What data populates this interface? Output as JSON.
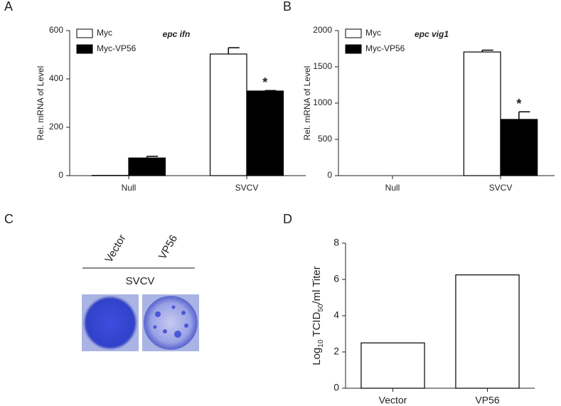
{
  "chart_data": [
    {
      "type": "bar",
      "panel_label": "A",
      "title": "epc ifn",
      "ylabel": "Rel. mRNA of Level",
      "categories": [
        "Null",
        "SVCV"
      ],
      "series": [
        {
          "name": "Myc",
          "color": "#ffffff",
          "values": [
            1,
            503
          ],
          "errors": [
            0,
            26
          ],
          "annotations": [
            null,
            null
          ]
        },
        {
          "name": "Myc-VP56",
          "color": "#000000",
          "values": [
            73,
            350
          ],
          "errors": [
            7,
            2
          ],
          "annotations": [
            null,
            "*"
          ]
        }
      ],
      "ylim": [
        0,
        600
      ],
      "yticks": [
        0,
        200,
        400,
        600
      ],
      "legend": "upper left"
    },
    {
      "type": "bar",
      "panel_label": "B",
      "title": "epc vig1",
      "ylabel": "Rel. mRNA of Level",
      "categories": [
        "Null",
        "SVCV"
      ],
      "series": [
        {
          "name": "Myc",
          "color": "#ffffff",
          "values": [
            0,
            1705
          ],
          "errors": [
            0,
            25
          ],
          "annotations": [
            null,
            null
          ]
        },
        {
          "name": "Myc-VP56",
          "color": "#000000",
          "values": [
            0,
            775
          ],
          "errors": [
            0,
            105
          ],
          "annotations": [
            null,
            "*"
          ]
        }
      ],
      "ylim": [
        0,
        2000
      ],
      "yticks": [
        0,
        500,
        1000,
        1500,
        2000
      ],
      "legend": "upper left"
    },
    {
      "type": "bar",
      "panel_label": "D",
      "ylabel_parts": [
        "Log",
        "10",
        " TCID",
        "50",
        "/ml Titer"
      ],
      "categories": [
        "Vector",
        "VP56"
      ],
      "series": [
        {
          "color": "#ffffff",
          "values": [
            2.5,
            6.25
          ]
        }
      ],
      "ylim": [
        0,
        8
      ],
      "yticks": [
        0,
        2,
        4,
        6,
        8
      ]
    }
  ],
  "panel_c": {
    "panel_label": "C",
    "columns": [
      "Vector",
      "VP56"
    ],
    "treatment": "SVCV"
  }
}
